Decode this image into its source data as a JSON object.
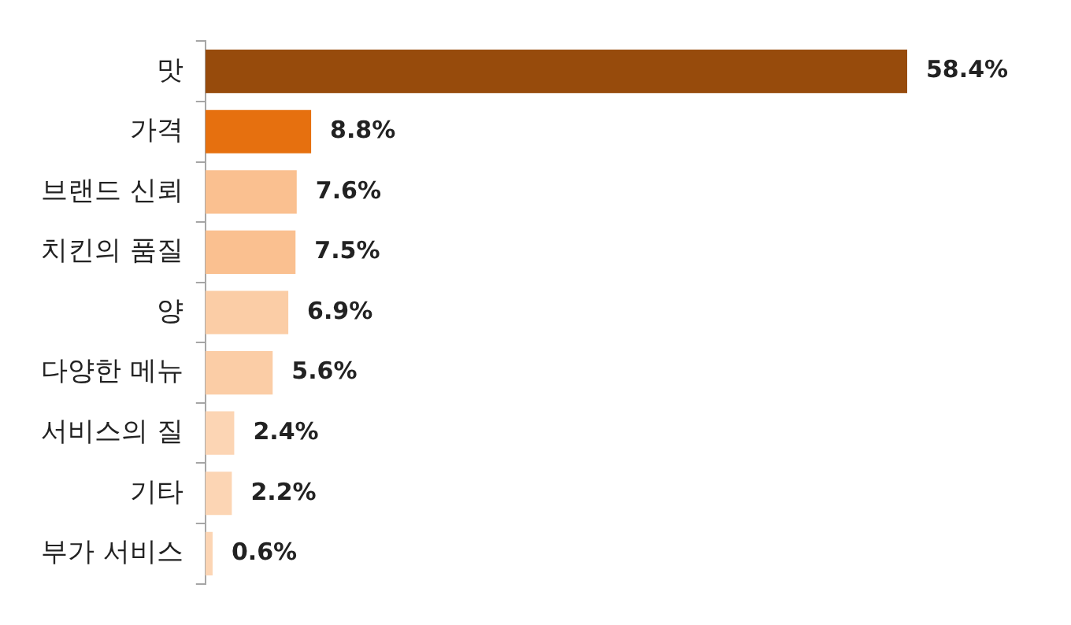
{
  "chart_data": {
    "type": "bar",
    "orientation": "horizontal",
    "categories": [
      "맛",
      "가격",
      "브랜드 신뢰",
      "치킨의 품질",
      "양",
      "다양한 메뉴",
      "서비스의 질",
      "기타",
      "부가 서비스"
    ],
    "values": [
      58.4,
      8.8,
      7.6,
      7.5,
      6.9,
      5.6,
      2.4,
      2.2,
      0.6
    ],
    "value_labels": [
      "58.4%",
      "8.8%",
      "7.6%",
      "7.5%",
      "6.9%",
      "5.6%",
      "2.4%",
      "2.2%",
      "0.6%"
    ],
    "colors": [
      "#974b0c",
      "#e6700f",
      "#fac090",
      "#fac090",
      "#fbcda6",
      "#fbcda6",
      "#fcd5b4",
      "#fcd5b4",
      "#fcd5b4"
    ],
    "grid": false,
    "legend": false
  }
}
